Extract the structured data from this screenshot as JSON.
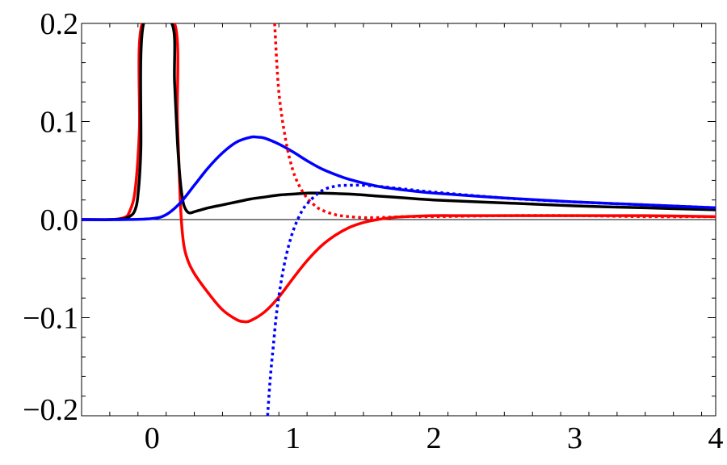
{
  "chart_data": {
    "type": "line",
    "title": "",
    "xlabel": "",
    "ylabel": "",
    "xlim": [
      -0.5,
      4
    ],
    "ylim": [
      -0.2,
      0.2
    ],
    "grid": false,
    "zero_line": true,
    "x_ticks": [
      0,
      1,
      2,
      3,
      4
    ],
    "x_tick_labels": [
      "0",
      "1",
      "2",
      "3",
      "4"
    ],
    "y_ticks": [
      0.2,
      0.1,
      0.0,
      -0.1,
      -0.2
    ],
    "y_tick_labels": [
      "0.2",
      "0.1",
      "0.0",
      "−0.1",
      "−0.2"
    ],
    "series": [
      {
        "color": "#ff0000",
        "style": "solid",
        "x": [
          -0.5,
          -0.3,
          -0.2,
          -0.16,
          -0.12,
          -0.09,
          -0.07,
          0.16,
          0.18,
          0.2,
          0.22,
          0.25,
          0.3,
          0.4,
          0.5,
          0.6,
          0.65,
          0.7,
          0.8,
          0.9,
          1.0,
          1.1,
          1.2,
          1.3,
          1.4,
          1.5,
          1.6,
          1.7,
          1.8,
          2.0,
          2.2,
          2.5,
          3.0,
          3.5,
          4.0
        ],
        "y": [
          0.0,
          0.0,
          0.002,
          0.008,
          0.03,
          0.09,
          0.2,
          0.2,
          0.1,
          0.02,
          -0.02,
          -0.04,
          -0.055,
          -0.075,
          -0.092,
          -0.102,
          -0.104,
          -0.103,
          -0.094,
          -0.079,
          -0.06,
          -0.042,
          -0.027,
          -0.016,
          -0.008,
          -0.003,
          0.0,
          0.002,
          0.003,
          0.004,
          0.004,
          0.004,
          0.004,
          0.004,
          0.003
        ]
      },
      {
        "color": "#000000",
        "style": "solid",
        "x": [
          -0.5,
          -0.3,
          -0.2,
          -0.15,
          -0.12,
          -0.1,
          -0.08,
          -0.06,
          0.14,
          0.16,
          0.18,
          0.2,
          0.22,
          0.24,
          0.26,
          0.28,
          0.3,
          0.35,
          0.4,
          0.5,
          0.6,
          0.7,
          0.8,
          0.9,
          1.0,
          1.1,
          1.2,
          1.4,
          1.6,
          1.8,
          2.0,
          2.5,
          3.0,
          3.5,
          4.0
        ],
        "y": [
          0.0,
          0.0,
          0.001,
          0.004,
          0.01,
          0.025,
          0.07,
          0.2,
          0.2,
          0.14,
          0.08,
          0.04,
          0.018,
          0.01,
          0.007,
          0.007,
          0.008,
          0.01,
          0.012,
          0.015,
          0.018,
          0.021,
          0.023,
          0.025,
          0.026,
          0.027,
          0.027,
          0.026,
          0.024,
          0.022,
          0.02,
          0.017,
          0.014,
          0.012,
          0.01
        ]
      },
      {
        "color": "#0000ff",
        "style": "solid",
        "x": [
          -0.5,
          -0.2,
          0.0,
          0.1,
          0.2,
          0.3,
          0.4,
          0.5,
          0.6,
          0.7,
          0.75,
          0.8,
          0.9,
          1.0,
          1.1,
          1.2,
          1.3,
          1.4,
          1.6,
          1.8,
          2.0,
          2.5,
          3.0,
          3.5,
          4.0
        ],
        "y": [
          0.0,
          0.0,
          0.001,
          0.005,
          0.017,
          0.035,
          0.053,
          0.068,
          0.079,
          0.084,
          0.084,
          0.083,
          0.077,
          0.069,
          0.06,
          0.052,
          0.046,
          0.041,
          0.034,
          0.03,
          0.027,
          0.022,
          0.018,
          0.015,
          0.012
        ]
      },
      {
        "color": "#ff0000",
        "style": "dotted",
        "x": [
          0.87,
          0.9,
          0.95,
          1.0,
          1.05,
          1.1,
          1.15,
          1.2,
          1.3,
          1.4,
          1.5,
          1.6,
          1.8,
          2.0,
          2.5,
          3.0,
          3.5,
          4.0
        ],
        "y": [
          0.2,
          0.13,
          0.08,
          0.05,
          0.033,
          0.022,
          0.015,
          0.01,
          0.005,
          0.003,
          0.002,
          0.002,
          0.003,
          0.003,
          0.004,
          0.004,
          0.003,
          0.003
        ]
      },
      {
        "color": "#0000ff",
        "style": "dotted",
        "x": [
          0.82,
          0.84,
          0.86,
          0.88,
          0.9,
          0.93,
          0.96,
          1.0,
          1.05,
          1.1,
          1.2,
          1.3,
          1.4,
          1.5,
          1.6,
          1.8,
          2.0,
          2.5,
          3.0,
          3.5,
          4.0
        ],
        "y": [
          -0.2,
          -0.16,
          -0.13,
          -0.1,
          -0.078,
          -0.052,
          -0.032,
          -0.012,
          0.005,
          0.016,
          0.029,
          0.034,
          0.035,
          0.035,
          0.034,
          0.031,
          0.028,
          0.022,
          0.018,
          0.015,
          0.012
        ]
      }
    ]
  }
}
